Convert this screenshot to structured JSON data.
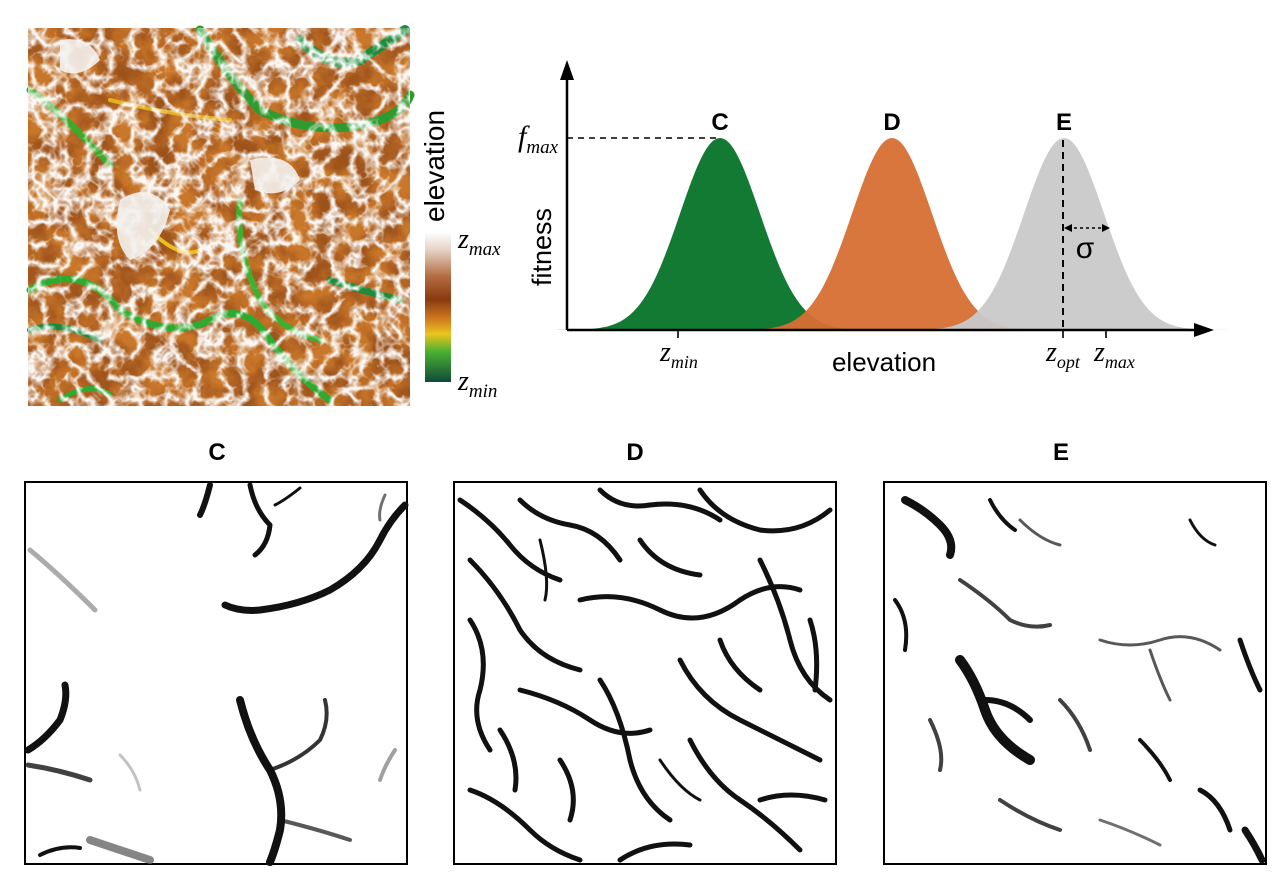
{
  "elevation_map": {
    "colorbar_label": "elevation",
    "z_max": {
      "base": "z",
      "sub": "max"
    },
    "z_min": {
      "base": "z",
      "sub": "min"
    },
    "colors": [
      "#ffffff",
      "#c08060",
      "#8a3a10",
      "#d07a20",
      "#e8c020",
      "#4ab030",
      "#1a7a3a",
      "#0f4a3a"
    ]
  },
  "fitness_plot": {
    "ylabel": "fitness",
    "xlabel": "elevation",
    "f_max": {
      "base": "f",
      "sub": "max"
    },
    "z_min": {
      "base": "z",
      "sub": "min"
    },
    "z_opt": {
      "base": "z",
      "sub": "opt"
    },
    "z_max": {
      "base": "z",
      "sub": "max"
    },
    "sigma": "σ",
    "curves": [
      {
        "label": "C",
        "color": "#137a34"
      },
      {
        "label": "D",
        "color": "#d76f34"
      },
      {
        "label": "E",
        "color": "#c9c9c9"
      }
    ]
  },
  "maps": [
    {
      "title": "C"
    },
    {
      "title": "D"
    },
    {
      "title": "E"
    }
  ]
}
